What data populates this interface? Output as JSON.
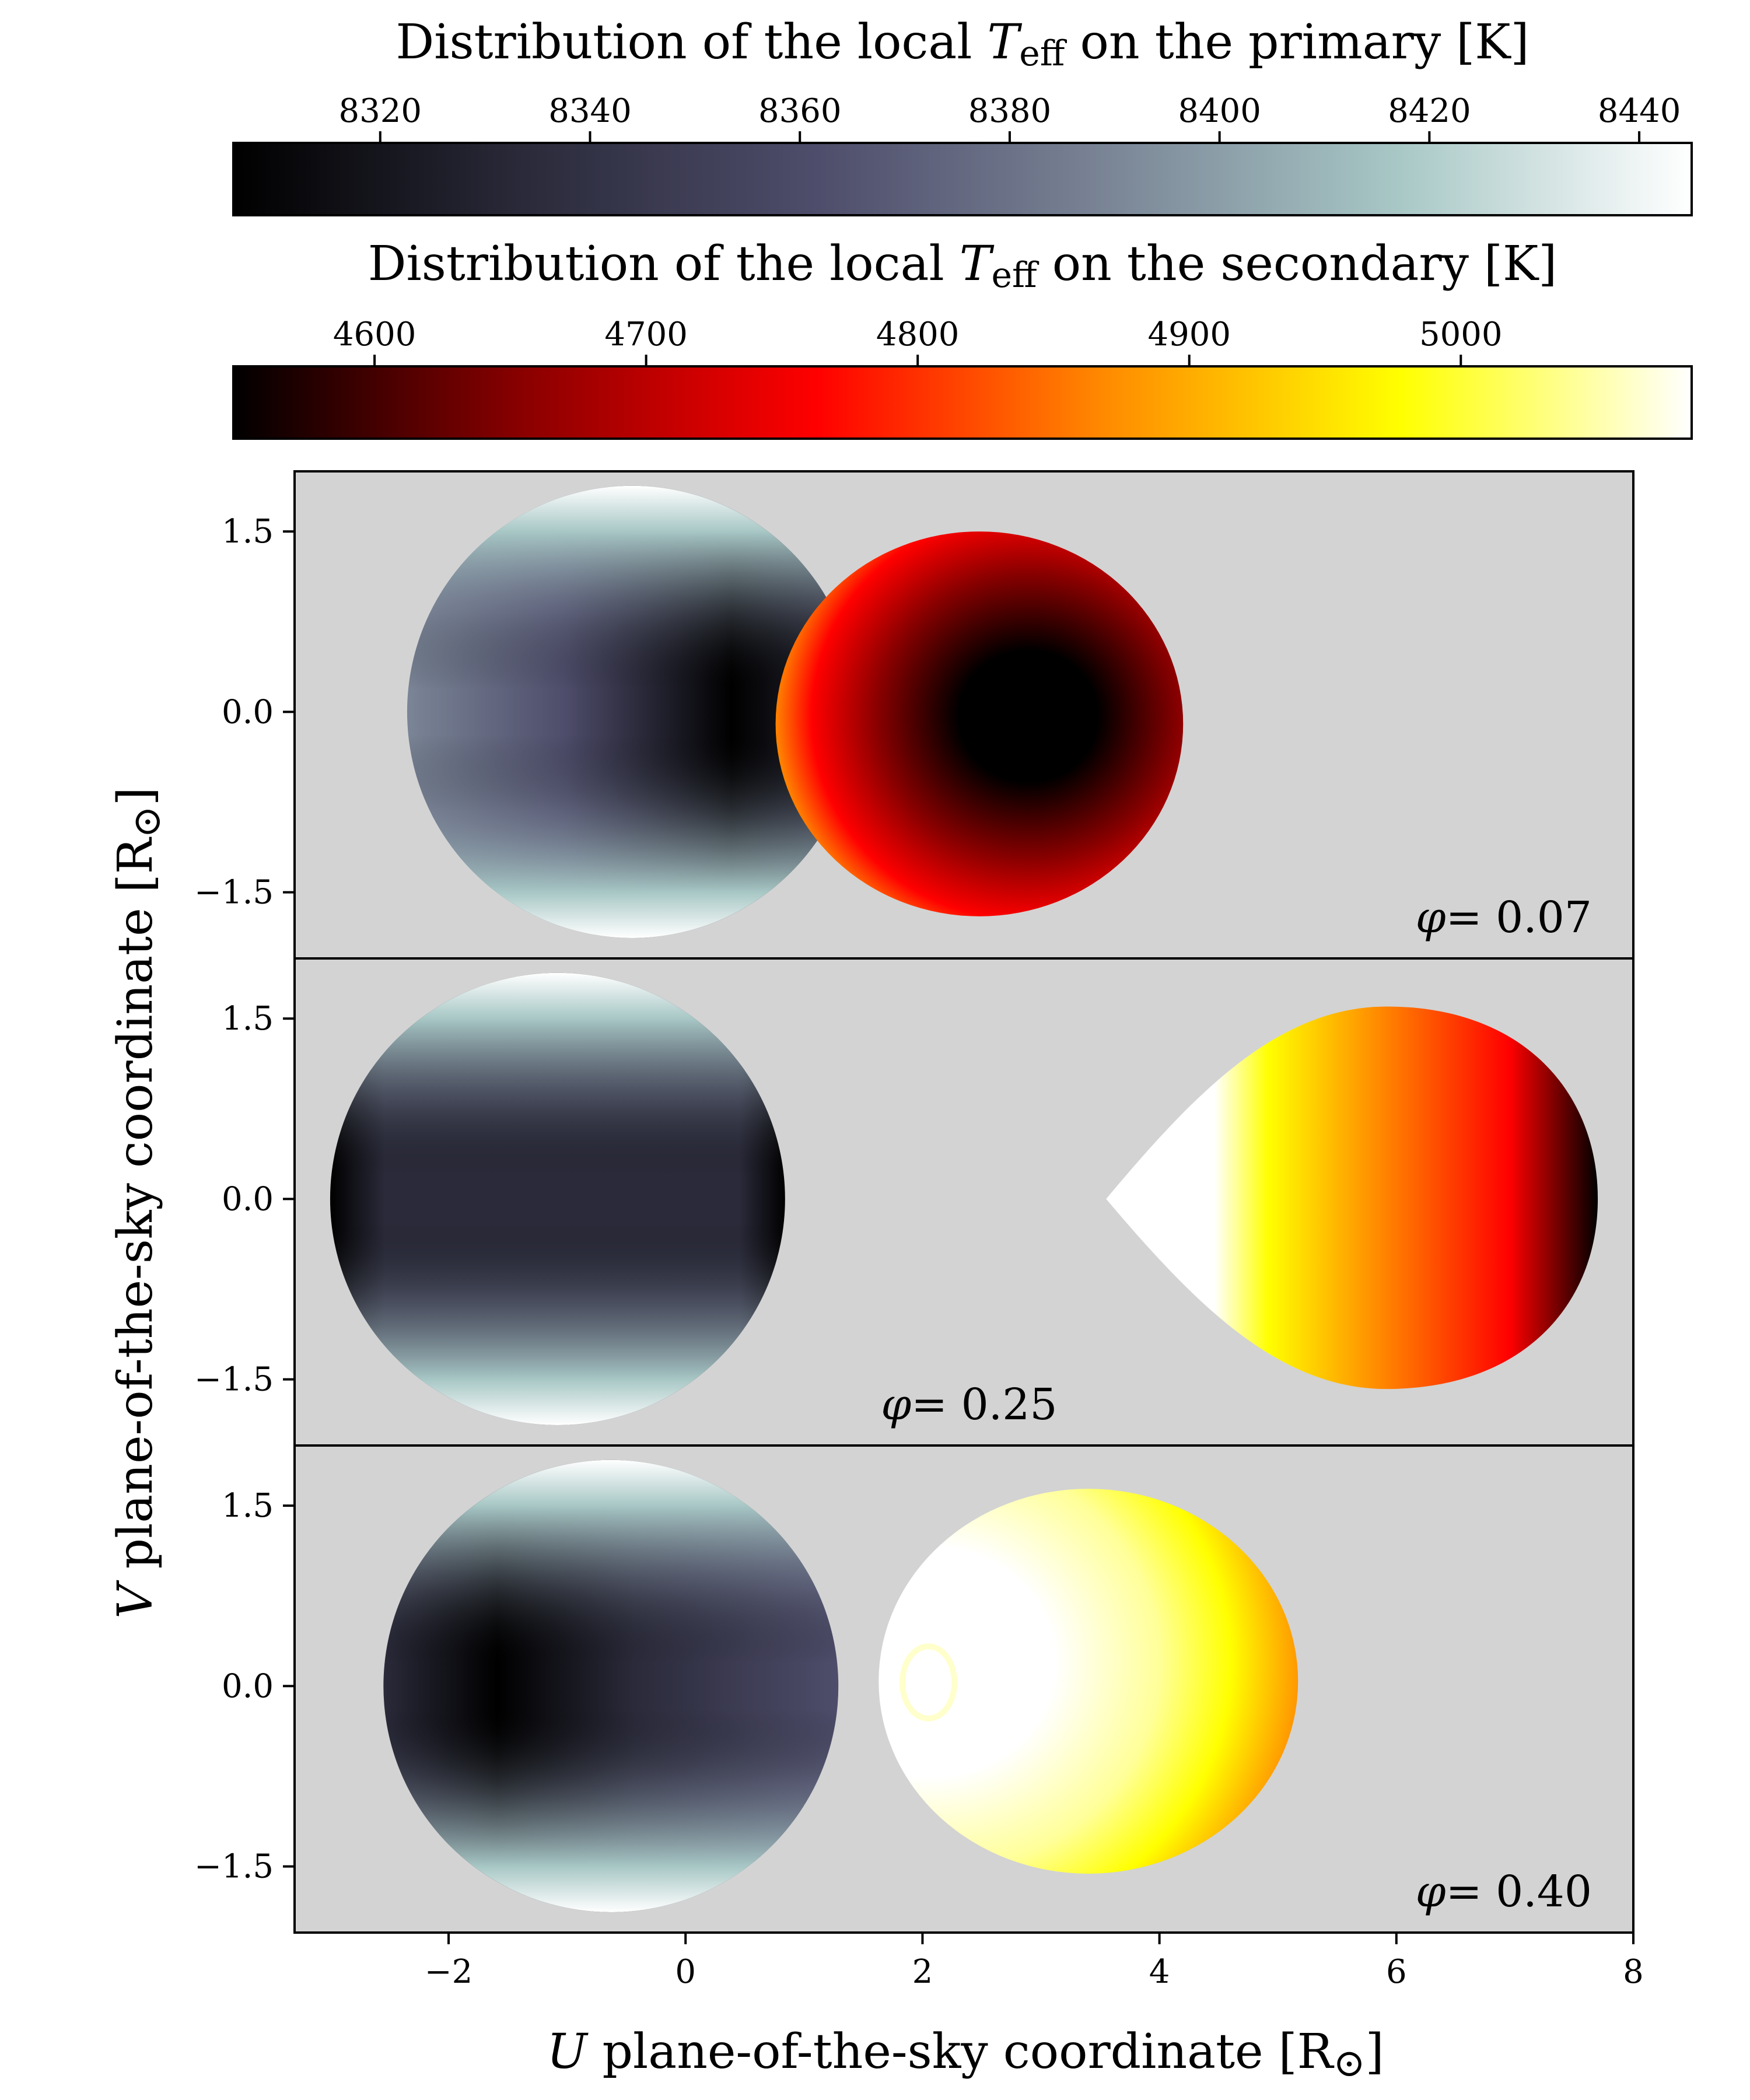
{
  "colors": {
    "panel_bg": "#d3d3d3",
    "primary_cmap": [
      "#000000",
      "#2a2a3a",
      "#4e4d6b",
      "#7a8596",
      "#a8c8c6",
      "#ffffff"
    ],
    "secondary_cmap": [
      "#000000",
      "#8b0000",
      "#ff0000",
      "#ff8c00",
      "#ffff00",
      "#ffffff"
    ]
  },
  "chart_data": [
    {
      "type": "colorbar",
      "title_parts": {
        "before": "Distribution of the local ",
        "symbol": "T",
        "subscript": "eff",
        "after": " on the primary [K]"
      },
      "range": [
        8306,
        8445
      ],
      "ticks": [
        8320,
        8340,
        8360,
        8380,
        8400,
        8420,
        8440
      ],
      "tick_labels": [
        "8320",
        "8340",
        "8360",
        "8380",
        "8400",
        "8420",
        "8440"
      ],
      "colormap": "bone"
    },
    {
      "type": "colorbar",
      "title_parts": {
        "before": "Distribution of the local ",
        "symbol": "T",
        "subscript": "eff",
        "after": " on the secondary [K]"
      },
      "range": [
        4548,
        5085
      ],
      "ticks": [
        4600,
        4700,
        4800,
        4900,
        5000
      ],
      "tick_labels": [
        "4600",
        "4700",
        "4800",
        "4900",
        "5000"
      ],
      "colormap": "hot"
    },
    {
      "type": "image",
      "xlim": [
        -3.3,
        8.0
      ],
      "ylim": [
        -2.05,
        2.0
      ],
      "xticks": [
        -2,
        0,
        2,
        4,
        6,
        8
      ],
      "xtick_labels": [
        "−2",
        "0",
        "2",
        "4",
        "6",
        "8"
      ],
      "yticks": [
        1.5,
        0.0,
        -1.5
      ],
      "ytick_labels": [
        "1.5",
        "0.0",
        "−1.5"
      ],
      "xlabel_parts": {
        "symbol": "U",
        "text": " plane-of-the-sky coordinate [R",
        "sun": "⊙",
        "close": "]"
      },
      "ylabel_parts": {
        "symbol": "V",
        "text": " plane-of-the-sky coordinate [R",
        "sun": "⊙",
        "close": "]"
      },
      "panels": [
        {
          "phase_symbol": "φ",
          "phase_value": "= 0.07",
          "label_anchor": "lower-right",
          "primary": {
            "cx": -0.45,
            "cy": 0.0,
            "rx": 1.9,
            "ry": 1.88
          },
          "secondary": {
            "cx": 2.48,
            "cy": -0.1,
            "rx": 1.72,
            "ry": 1.6
          }
        },
        {
          "phase_symbol": "φ",
          "phase_value": "= 0.25",
          "label_anchor": "lower-center",
          "primary": {
            "cx": -1.08,
            "cy": 0.0,
            "rx": 1.92,
            "ry": 1.88
          },
          "secondary": {
            "shape": "teardrop",
            "tip_u": 3.55,
            "right_u": 7.7,
            "top_v": 1.6,
            "bottom_v": -1.58
          }
        },
        {
          "phase_symbol": "φ",
          "phase_value": "= 0.40",
          "label_anchor": "lower-right",
          "primary": {
            "cx": -0.63,
            "cy": 0.0,
            "rx": 1.92,
            "ry": 1.88
          },
          "secondary": {
            "cx": 3.4,
            "cy": 0.04,
            "rx": 1.77,
            "ry": 1.6
          }
        }
      ]
    }
  ]
}
